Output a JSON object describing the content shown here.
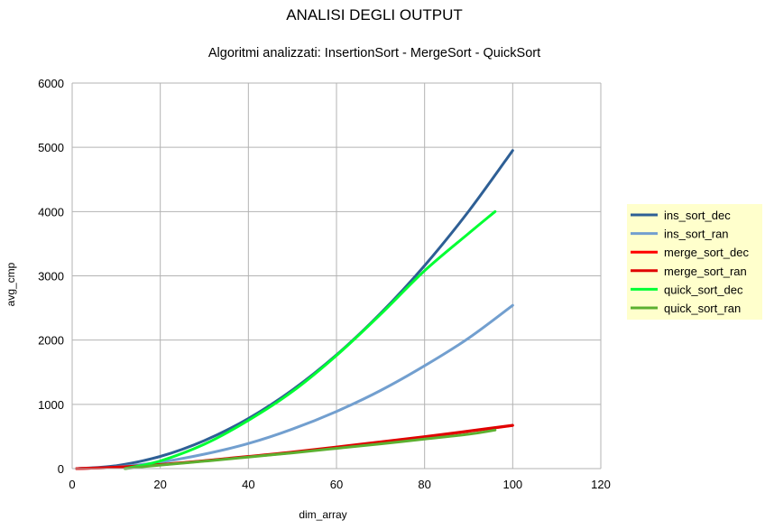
{
  "chart_data": {
    "type": "line",
    "title": "ANALISI DEGLI OUTPUT",
    "subtitle": "Algoritmi analizzati: InsertionSort - MergeSort - QuickSort",
    "xlabel": "dim_array",
    "ylabel": "avg_cmp",
    "xlim": [
      0,
      120
    ],
    "ylim": [
      0,
      6000
    ],
    "x_ticks": [
      0,
      20,
      40,
      60,
      80,
      100,
      120
    ],
    "y_ticks": [
      0,
      1000,
      2000,
      3000,
      4000,
      5000,
      6000
    ],
    "grid": true,
    "legend_position": "right",
    "background": "#ffffff",
    "legend_background": "#ffffcc",
    "series": [
      {
        "name": "ins_sort_dec",
        "color": "#2e5f95",
        "x": [
          1,
          10,
          20,
          30,
          40,
          50,
          60,
          70,
          80,
          90,
          100
        ],
        "y": [
          0,
          45,
          190,
          435,
          780,
          1225,
          1770,
          2415,
          3160,
          4005,
          4950
        ]
      },
      {
        "name": "ins_sort_ran",
        "color": "#729fcf",
        "x": [
          1,
          10,
          20,
          30,
          40,
          50,
          60,
          70,
          80,
          90,
          100
        ],
        "y": [
          0,
          25,
          100,
          225,
          390,
          615,
          890,
          1215,
          1600,
          2030,
          2540
        ]
      },
      {
        "name": "merge_sort_dec",
        "color": "#ff0000",
        "x": [
          1,
          10,
          20,
          30,
          40,
          50,
          60,
          70,
          80,
          90,
          100
        ],
        "y": [
          0,
          20,
          60,
          120,
          185,
          250,
          330,
          410,
          490,
          580,
          670
        ]
      },
      {
        "name": "merge_sort_ran",
        "color": "#e00000",
        "x": [
          1,
          10,
          20,
          30,
          40,
          50,
          60,
          70,
          80,
          90,
          100
        ],
        "y": [
          0,
          22,
          64,
          124,
          190,
          258,
          336,
          416,
          498,
          585,
          675
        ]
      },
      {
        "name": "quick_sort_dec",
        "color": "#00ff33",
        "x": [
          12,
          20,
          30,
          40,
          50,
          60,
          70,
          80,
          90,
          96
        ],
        "y": [
          0,
          120,
          380,
          750,
          1200,
          1760,
          2400,
          3080,
          3660,
          4000
        ]
      },
      {
        "name": "quick_sort_ran",
        "color": "#5cb030",
        "x": [
          12,
          20,
          30,
          40,
          50,
          60,
          70,
          80,
          90,
          96
        ],
        "y": [
          0,
          55,
          115,
          180,
          245,
          315,
          385,
          460,
          535,
          600
        ]
      }
    ]
  }
}
